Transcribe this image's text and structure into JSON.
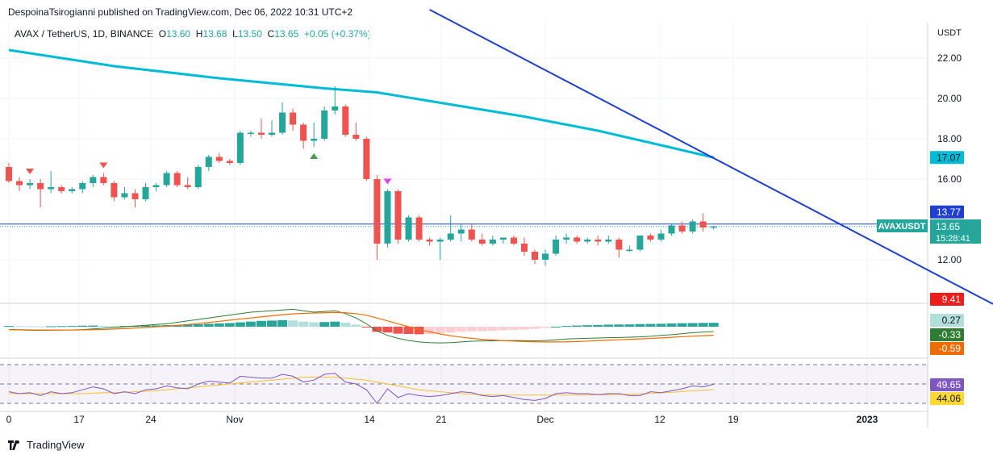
{
  "header": {
    "published_by": "DespoinaTsirogianni published on TradingView.com, Dec 06, 2022 10:31 UTC+2"
  },
  "legend": {
    "symbol": "AVAX / TetherUS, 1D, BINANCE",
    "open_label": "O",
    "open": "13.60",
    "high_label": "H",
    "high": "13.68",
    "low_label": "L",
    "low": "13.50",
    "close_label": "C",
    "close": "13.65",
    "change": "+0.05 (+0.37%)"
  },
  "footer": {
    "brand": "TradingView"
  },
  "colors": {
    "up": "#26a69a",
    "down": "#ef5350",
    "ma": "#00bcd4",
    "trendline": "#1e3fd2",
    "macd": "#2e7d32",
    "signal": "#ef6c00",
    "rsi": "#7e57c2",
    "rsi_ma": "#fbc02d"
  },
  "chart_data": {
    "type": "candlestick",
    "currency_label": "USDT",
    "price_axis": {
      "ticks": [
        "22.00",
        "20.00",
        "18.00",
        "16.00",
        "12.00"
      ]
    },
    "time_axis": {
      "labels": [
        "0",
        "17",
        "24",
        "Nov",
        "14",
        "21",
        "Dec",
        "12",
        "19",
        "2023"
      ]
    },
    "price_tags": [
      {
        "value": "17.07",
        "color": "#00bcd4"
      },
      {
        "value": "13.77",
        "color": "#1e3fd2"
      },
      {
        "value": "13.65",
        "color": "#26a69a",
        "symbol": "AVAXUSDT",
        "countdown": "15:28:41"
      },
      {
        "value": "9.41",
        "color": "#ef1c1c"
      }
    ],
    "candles": [
      {
        "date": "2022-10-10",
        "o": 16.6,
        "h": 16.8,
        "l": 15.8,
        "c": 15.9
      },
      {
        "date": "2022-10-11",
        "o": 15.9,
        "h": 16.1,
        "l": 15.4,
        "c": 15.7
      },
      {
        "date": "2022-10-12",
        "o": 15.7,
        "h": 16.0,
        "l": 15.5,
        "c": 15.8
      },
      {
        "date": "2022-10-13",
        "o": 15.8,
        "h": 16.0,
        "l": 14.6,
        "c": 15.5
      },
      {
        "date": "2022-10-14",
        "o": 15.5,
        "h": 16.4,
        "l": 15.3,
        "c": 15.6
      },
      {
        "date": "2022-10-15",
        "o": 15.6,
        "h": 15.7,
        "l": 15.3,
        "c": 15.4
      },
      {
        "date": "2022-10-16",
        "o": 15.4,
        "h": 15.6,
        "l": 15.3,
        "c": 15.5
      },
      {
        "date": "2022-10-17",
        "o": 15.5,
        "h": 15.9,
        "l": 15.3,
        "c": 15.8
      },
      {
        "date": "2022-10-18",
        "o": 15.8,
        "h": 16.2,
        "l": 15.6,
        "c": 16.1
      },
      {
        "date": "2022-10-19",
        "o": 16.1,
        "h": 16.3,
        "l": 15.7,
        "c": 15.8
      },
      {
        "date": "2022-10-20",
        "o": 15.8,
        "h": 15.9,
        "l": 14.9,
        "c": 15.1
      },
      {
        "date": "2022-10-21",
        "o": 15.1,
        "h": 15.6,
        "l": 15.0,
        "c": 15.3
      },
      {
        "date": "2022-10-22",
        "o": 15.3,
        "h": 15.5,
        "l": 14.6,
        "c": 15.0
      },
      {
        "date": "2022-10-23",
        "o": 15.0,
        "h": 15.8,
        "l": 14.9,
        "c": 15.6
      },
      {
        "date": "2022-10-24",
        "o": 15.6,
        "h": 15.8,
        "l": 15.4,
        "c": 15.7
      },
      {
        "date": "2022-10-25",
        "o": 15.7,
        "h": 16.4,
        "l": 15.6,
        "c": 16.3
      },
      {
        "date": "2022-10-26",
        "o": 16.3,
        "h": 16.4,
        "l": 15.6,
        "c": 15.7
      },
      {
        "date": "2022-10-27",
        "o": 15.7,
        "h": 16.1,
        "l": 15.5,
        "c": 15.6
      },
      {
        "date": "2022-10-28",
        "o": 15.6,
        "h": 16.7,
        "l": 15.5,
        "c": 16.6
      },
      {
        "date": "2022-10-29",
        "o": 16.6,
        "h": 17.2,
        "l": 16.4,
        "c": 17.1
      },
      {
        "date": "2022-10-30",
        "o": 17.1,
        "h": 17.3,
        "l": 16.8,
        "c": 16.9
      },
      {
        "date": "2022-10-31",
        "o": 16.9,
        "h": 17.0,
        "l": 16.7,
        "c": 16.8
      },
      {
        "date": "2022-11-01",
        "o": 16.8,
        "h": 18.4,
        "l": 16.7,
        "c": 18.3
      },
      {
        "date": "2022-11-02",
        "o": 18.3,
        "h": 18.4,
        "l": 18.1,
        "c": 18.3
      },
      {
        "date": "2022-11-03",
        "o": 18.3,
        "h": 19.0,
        "l": 18.0,
        "c": 18.2
      },
      {
        "date": "2022-11-04",
        "o": 18.2,
        "h": 18.9,
        "l": 18.1,
        "c": 18.3
      },
      {
        "date": "2022-11-05",
        "o": 18.3,
        "h": 19.8,
        "l": 18.2,
        "c": 19.3
      },
      {
        "date": "2022-11-06",
        "o": 19.3,
        "h": 19.5,
        "l": 18.4,
        "c": 18.7
      },
      {
        "date": "2022-11-07",
        "o": 18.7,
        "h": 18.8,
        "l": 17.5,
        "c": 17.9
      },
      {
        "date": "2022-11-08",
        "o": 17.9,
        "h": 18.8,
        "l": 17.6,
        "c": 18.0
      },
      {
        "date": "2022-11-09",
        "o": 18.0,
        "h": 19.6,
        "l": 17.9,
        "c": 19.4
      },
      {
        "date": "2022-11-10",
        "o": 19.4,
        "h": 20.6,
        "l": 19.2,
        "c": 19.6
      },
      {
        "date": "2022-11-11",
        "o": 19.6,
        "h": 19.7,
        "l": 18.1,
        "c": 18.2
      },
      {
        "date": "2022-11-12",
        "o": 18.2,
        "h": 18.8,
        "l": 17.9,
        "c": 18.0
      },
      {
        "date": "2022-11-13",
        "o": 18.0,
        "h": 18.1,
        "l": 15.9,
        "c": 16.0
      },
      {
        "date": "2022-11-14",
        "o": 16.0,
        "h": 16.2,
        "l": 12.0,
        "c": 12.8
      },
      {
        "date": "2022-11-15",
        "o": 12.8,
        "h": 15.5,
        "l": 12.6,
        "c": 15.4
      },
      {
        "date": "2022-11-16",
        "o": 15.4,
        "h": 15.5,
        "l": 12.8,
        "c": 13.0
      },
      {
        "date": "2022-11-17",
        "o": 13.0,
        "h": 14.2,
        "l": 12.9,
        "c": 14.1
      },
      {
        "date": "2022-11-18",
        "o": 14.1,
        "h": 14.2,
        "l": 12.9,
        "c": 13.0
      },
      {
        "date": "2022-11-19",
        "o": 13.0,
        "h": 13.1,
        "l": 12.7,
        "c": 12.9
      },
      {
        "date": "2022-11-20",
        "o": 12.9,
        "h": 13.1,
        "l": 12.0,
        "c": 13.0
      },
      {
        "date": "2022-11-21",
        "o": 13.0,
        "h": 14.2,
        "l": 12.9,
        "c": 13.3
      },
      {
        "date": "2022-11-22",
        "o": 13.3,
        "h": 13.8,
        "l": 12.9,
        "c": 13.5
      },
      {
        "date": "2022-11-23",
        "o": 13.5,
        "h": 13.8,
        "l": 12.9,
        "c": 13.0
      },
      {
        "date": "2022-11-24",
        "o": 13.0,
        "h": 13.3,
        "l": 12.7,
        "c": 12.8
      },
      {
        "date": "2022-11-25",
        "o": 12.8,
        "h": 13.2,
        "l": 12.7,
        "c": 13.0
      },
      {
        "date": "2022-11-26",
        "o": 13.0,
        "h": 13.1,
        "l": 12.8,
        "c": 13.1
      },
      {
        "date": "2022-11-27",
        "o": 13.1,
        "h": 13.2,
        "l": 12.7,
        "c": 12.8
      },
      {
        "date": "2022-11-28",
        "o": 12.8,
        "h": 13.1,
        "l": 12.2,
        "c": 12.4
      },
      {
        "date": "2022-11-29",
        "o": 12.4,
        "h": 12.5,
        "l": 11.8,
        "c": 12.0
      },
      {
        "date": "2022-11-30",
        "o": 12.0,
        "h": 12.5,
        "l": 11.7,
        "c": 12.3
      },
      {
        "date": "2022-12-01",
        "o": 12.3,
        "h": 13.2,
        "l": 12.2,
        "c": 13.0
      },
      {
        "date": "2022-12-02",
        "o": 13.0,
        "h": 13.3,
        "l": 12.8,
        "c": 13.1
      },
      {
        "date": "2022-12-03",
        "o": 13.1,
        "h": 13.2,
        "l": 12.8,
        "c": 12.9
      },
      {
        "date": "2022-12-04",
        "o": 12.9,
        "h": 13.1,
        "l": 12.8,
        "c": 13.0
      },
      {
        "date": "2022-12-05",
        "o": 13.0,
        "h": 13.2,
        "l": 12.7,
        "c": 12.9
      },
      {
        "date": "2022-12-06",
        "o": 12.9,
        "h": 13.2,
        "l": 12.8,
        "c": 13.0
      },
      {
        "date": "2022-12-07",
        "o": 13.0,
        "h": 13.1,
        "l": 12.1,
        "c": 12.5
      },
      {
        "date": "2022-12-08",
        "o": 12.5,
        "h": 12.7,
        "l": 12.4,
        "c": 12.5
      },
      {
        "date": "2022-12-09",
        "o": 12.5,
        "h": 13.2,
        "l": 12.4,
        "c": 13.2
      },
      {
        "date": "2022-12-10",
        "o": 13.2,
        "h": 13.3,
        "l": 12.9,
        "c": 13.0
      },
      {
        "date": "2022-12-11",
        "o": 13.0,
        "h": 13.5,
        "l": 12.9,
        "c": 13.3
      },
      {
        "date": "2022-12-12",
        "o": 13.3,
        "h": 13.8,
        "l": 13.2,
        "c": 13.7
      },
      {
        "date": "2022-12-13",
        "o": 13.7,
        "h": 13.9,
        "l": 13.3,
        "c": 13.4
      },
      {
        "date": "2022-12-14",
        "o": 13.4,
        "h": 14.0,
        "l": 13.3,
        "c": 13.9
      },
      {
        "date": "2022-12-15",
        "o": 13.9,
        "h": 14.3,
        "l": 13.4,
        "c": 13.6
      },
      {
        "date": "2022-12-16",
        "o": 13.6,
        "h": 13.68,
        "l": 13.5,
        "c": 13.65
      }
    ],
    "moving_average": [
      {
        "date": "2022-10-10",
        "v": 22.4
      },
      {
        "date": "2022-10-20",
        "v": 21.6
      },
      {
        "date": "2022-10-30",
        "v": 21.0
      },
      {
        "date": "2022-11-09",
        "v": 20.5
      },
      {
        "date": "2022-11-14",
        "v": 20.3
      },
      {
        "date": "2022-11-21",
        "v": 19.7
      },
      {
        "date": "2022-11-28",
        "v": 19.1
      },
      {
        "date": "2022-12-05",
        "v": 18.4
      },
      {
        "date": "2022-12-10",
        "v": 17.8
      },
      {
        "date": "2022-12-16",
        "v": 17.07
      }
    ],
    "trendline": [
      {
        "date": "2022-11-19",
        "v": 24.4
      },
      {
        "date": "2023-01-13",
        "v": 9.41
      }
    ],
    "signals": [
      {
        "date": "2022-10-12",
        "kind": "sell"
      },
      {
        "date": "2022-10-19",
        "kind": "sell"
      },
      {
        "date": "2022-11-08",
        "kind": "buy"
      },
      {
        "date": "2022-11-15",
        "kind": "sell"
      }
    ],
    "macd": {
      "macd_value": "-0.33",
      "signal_value": "-0.59",
      "histogram_value": "0.27",
      "range": [
        -1.5,
        1.0
      ],
      "histogram": [
        0.05,
        0.04,
        0.03,
        0.02,
        0.03,
        0.04,
        0.05,
        0.07,
        0.08,
        0.06,
        0.04,
        0.05,
        0.06,
        0.08,
        0.09,
        0.11,
        0.12,
        0.14,
        0.17,
        0.2,
        0.23,
        0.25,
        0.3,
        0.35,
        0.4,
        0.42,
        0.45,
        0.43,
        0.35,
        0.3,
        0.32,
        0.35,
        0.28,
        0.15,
        -0.05,
        -0.35,
        -0.4,
        -0.48,
        -0.5,
        -0.52,
        -0.5,
        -0.45,
        -0.4,
        -0.35,
        -0.32,
        -0.3,
        -0.28,
        -0.25,
        -0.22,
        -0.2,
        -0.15,
        -0.08,
        0.0,
        0.05,
        0.08,
        0.1,
        0.12,
        0.14,
        0.15,
        0.16,
        0.18,
        0.19,
        0.2,
        0.22,
        0.24,
        0.25,
        0.26,
        0.27
      ],
      "macd_line": [
        -0.2,
        -0.22,
        -0.24,
        -0.25,
        -0.24,
        -0.23,
        -0.22,
        -0.2,
        -0.15,
        -0.1,
        -0.05,
        0.0,
        0.05,
        0.1,
        0.15,
        0.2,
        0.3,
        0.4,
        0.5,
        0.6,
        0.7,
        0.8,
        0.9,
        1.0,
        1.05,
        1.1,
        1.15,
        1.2,
        1.1,
        1.0,
        1.05,
        1.1,
        0.9,
        0.6,
        0.2,
        -0.3,
        -0.6,
        -0.8,
        -0.95,
        -1.05,
        -1.1,
        -1.12,
        -1.1,
        -1.05,
        -1.0,
        -0.98,
        -0.97,
        -0.96,
        -0.95,
        -0.96,
        -0.97,
        -0.95,
        -0.9,
        -0.85,
        -0.82,
        -0.8,
        -0.78,
        -0.76,
        -0.74,
        -0.72,
        -0.7,
        -0.66,
        -0.6,
        -0.55,
        -0.48,
        -0.42,
        -0.37,
        -0.33
      ],
      "signal_line": [
        -0.2,
        -0.21,
        -0.22,
        -0.23,
        -0.23,
        -0.23,
        -0.23,
        -0.22,
        -0.21,
        -0.19,
        -0.16,
        -0.13,
        -0.09,
        -0.05,
        -0.01,
        0.04,
        0.09,
        0.15,
        0.22,
        0.29,
        0.37,
        0.45,
        0.53,
        0.6,
        0.68,
        0.75,
        0.82,
        0.88,
        0.92,
        0.94,
        0.96,
        0.98,
        0.96,
        0.9,
        0.79,
        0.6,
        0.4,
        0.2,
        0.0,
        -0.2,
        -0.35,
        -0.5,
        -0.62,
        -0.72,
        -0.8,
        -0.87,
        -0.92,
        -0.96,
        -0.99,
        -1.02,
        -1.04,
        -1.05,
        -1.05,
        -1.04,
        -1.02,
        -0.99,
        -0.96,
        -0.93,
        -0.9,
        -0.87,
        -0.84,
        -0.81,
        -0.77,
        -0.73,
        -0.69,
        -0.65,
        -0.62,
        -0.59
      ]
    },
    "rsi": {
      "value": "49.65",
      "ma_value": "44.06",
      "range": [
        20,
        80
      ],
      "upper_band": 70,
      "lower_band": 30,
      "rsi_line": [
        42,
        40,
        41,
        38,
        42,
        40,
        41,
        44,
        47,
        45,
        40,
        42,
        40,
        44,
        45,
        48,
        46,
        45,
        50,
        53,
        52,
        51,
        58,
        57,
        56,
        56,
        60,
        58,
        52,
        54,
        60,
        61,
        52,
        50,
        44,
        30,
        45,
        36,
        40,
        38,
        37,
        38,
        40,
        42,
        41,
        38,
        37,
        38,
        36,
        34,
        33,
        35,
        40,
        41,
        40,
        40,
        39,
        40,
        40,
        38,
        38,
        42,
        41,
        43,
        45,
        48,
        47,
        49.65
      ],
      "ma_line": [
        40,
        40,
        40,
        40,
        40,
        40,
        40,
        40,
        40.5,
        41,
        41,
        41.5,
        42,
        42.5,
        43,
        44,
        45,
        46,
        47,
        48,
        49,
        50,
        51,
        52,
        53,
        54,
        55,
        56,
        57,
        57,
        57,
        57,
        56,
        55,
        54,
        52,
        50,
        48,
        46,
        44,
        43,
        42,
        41,
        40,
        39.5,
        39,
        38.5,
        38.5,
        38.5,
        38.5,
        38.5,
        38.5,
        38.5,
        38.5,
        38.5,
        38.6,
        38.8,
        39,
        39.2,
        39.5,
        39.8,
        40.2,
        40.8,
        41.5,
        42.2,
        43,
        43.6,
        44.06
      ]
    }
  }
}
